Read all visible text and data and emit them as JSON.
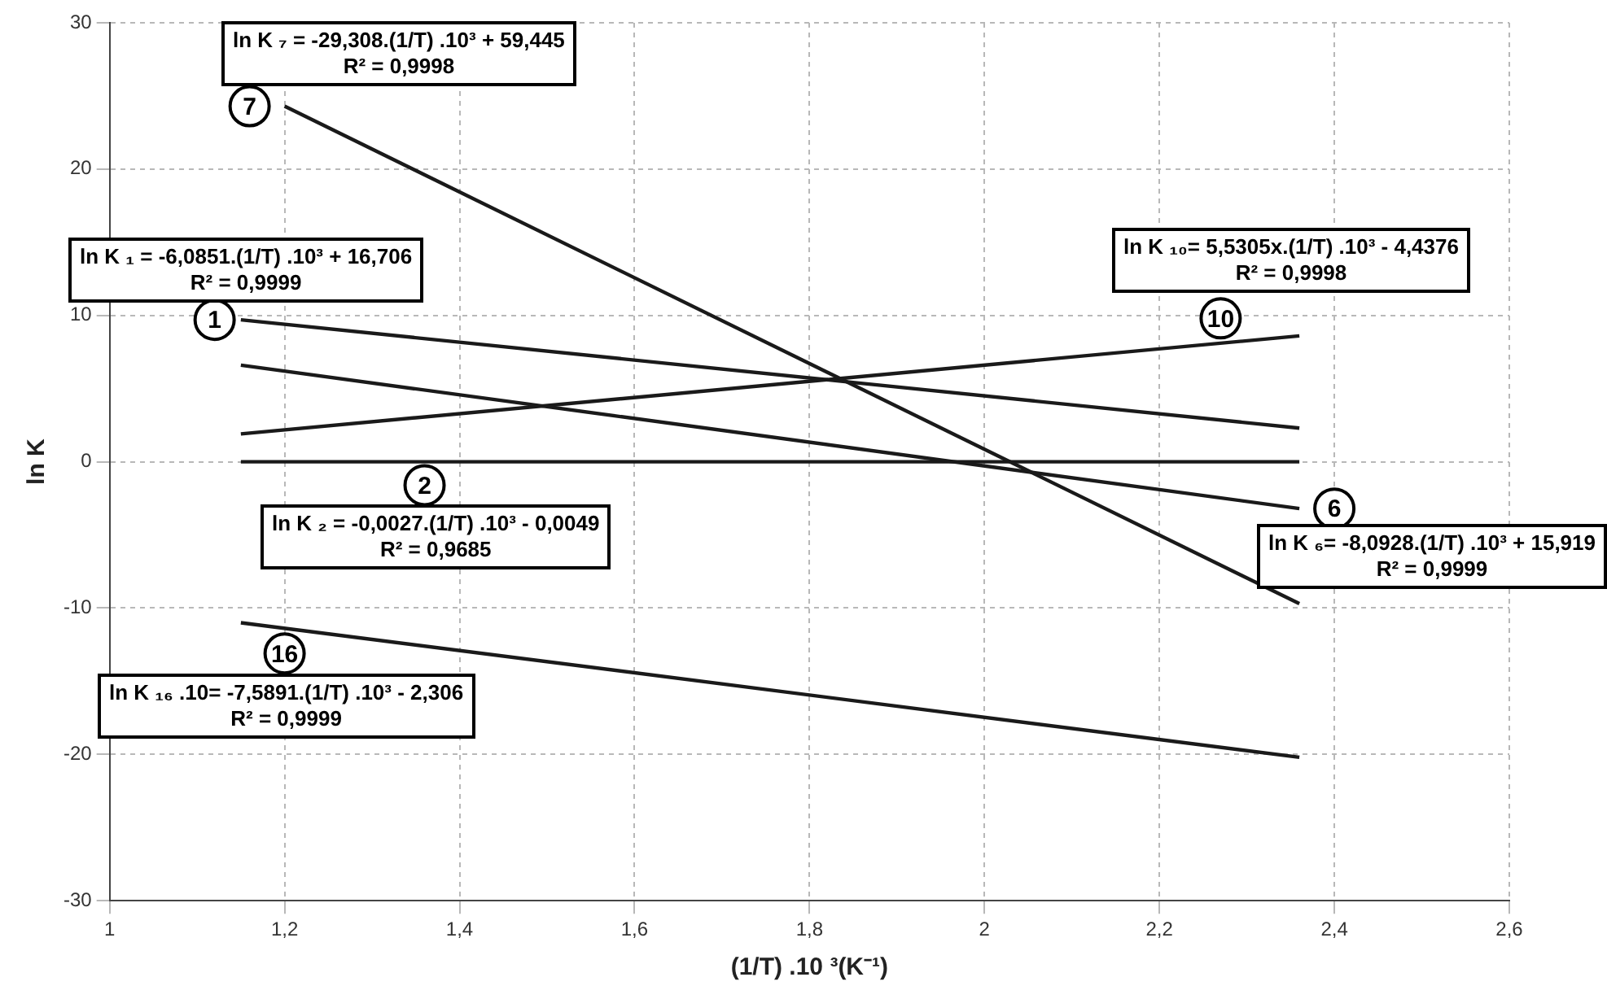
{
  "chart_data": {
    "type": "line",
    "xlabel": "(1/T) .10 ³(K⁻¹)",
    "ylabel": "ln K",
    "xlim": [
      1,
      2.6
    ],
    "xticks": [
      1,
      {
        "value": 1.2,
        "label": "1,2"
      },
      {
        "value": 1.4,
        "label": "1,4"
      },
      {
        "value": 1.6,
        "label": "1,6"
      },
      {
        "value": 1.8,
        "label": "1,8"
      },
      2,
      {
        "value": 2.2,
        "label": "2,2"
      },
      {
        "value": 2.4,
        "label": "2,4"
      },
      {
        "value": 2.6,
        "label": "2,6"
      }
    ],
    "ylim": [
      -30,
      30
    ],
    "yticks": [
      -30,
      -20,
      -10,
      0,
      10,
      20,
      30
    ],
    "grid": true,
    "legend": false,
    "line_style": "solid",
    "series": [
      {
        "color": "#1a1a1a",
        "x": [
          1.2,
          2.36
        ],
        "values": [
          24.3,
          -9.7
        ]
      },
      {
        "color": "#1a1a1a",
        "x": [
          1.15,
          2.36
        ],
        "values": [
          9.7,
          2.3
        ]
      },
      {
        "color": "#1a1a1a",
        "x": [
          1.15,
          2.36
        ],
        "values": [
          6.6,
          -3.2
        ]
      },
      {
        "color": "#1a1a1a",
        "x": [
          1.15,
          2.36
        ],
        "values": [
          1.9,
          8.6
        ]
      },
      {
        "color": "#1a1a1a",
        "x": [
          1.15,
          2.36
        ],
        "values": [
          0,
          0
        ]
      },
      {
        "color": "#1a1a1a",
        "x": [
          1.15,
          2.36
        ],
        "values": [
          -11,
          -20.2
        ]
      }
    ],
    "annotations": [
      "ln K ₇ = -29,308.(1/T) .10³ + 59,445\nR² = 0,9998",
      {
        "text": "7",
        "x": 1.16,
        "y": 24.3
      },
      "ln K ₁ = -6,0851.(1/T) .10³ + 16,706\nR² = 0,9999",
      {
        "text": "1",
        "x": 1.12,
        "y": 9.7
      },
      "ln K ₁₀= 5,5305x.(1/T) .10³ - 4,4376\nR² = 0,9998",
      {
        "text": "10",
        "x": 2.27,
        "y": 9.8
      },
      {
        "text": "2",
        "x": 1.36,
        "y": -1.6
      },
      "ln K ₂ = -0,0027.(1/T) .10³ - 0,0049\nR² = 0,9685",
      {
        "text": "6",
        "x": 2.4,
        "y": -3.2
      },
      "ln K ₆= -8,0928.(1/T) .10³ + 15,919\nR² = 0,9999",
      {
        "text": "16",
        "x": 1.2,
        "y": -13.1
      },
      "ln K ₁₆ .10= -7,5891.(1/T) .10³ - 2,306\nR² = 0,9999"
    ]
  }
}
